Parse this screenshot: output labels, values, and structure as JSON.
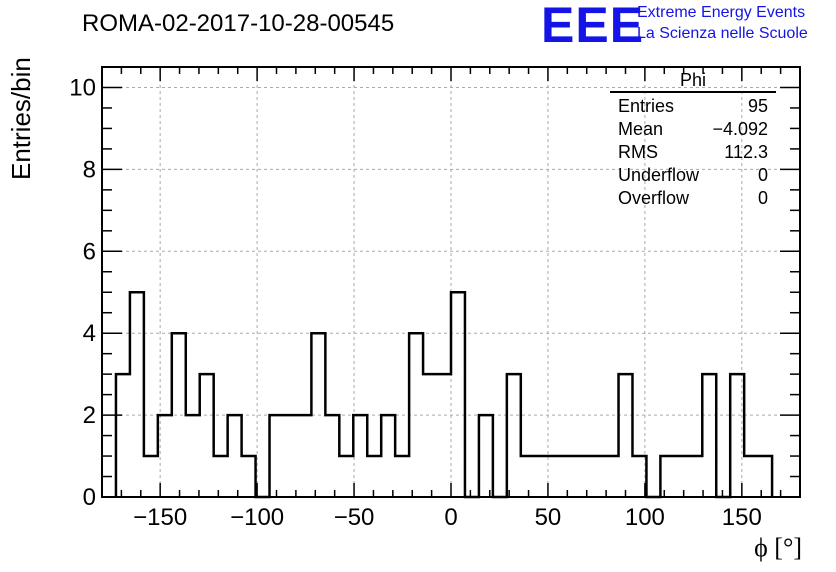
{
  "header": {
    "title": "ROMA-02-2017-10-28-00545",
    "logo_mark": "EEE",
    "logo_line1": "Extreme Energy Events",
    "logo_line2": "La Scienza nelle Scuole"
  },
  "stats": {
    "title": "Phi",
    "rows": [
      {
        "label": "Entries",
        "value": "95"
      },
      {
        "label": "Mean",
        "value": "−4.092"
      },
      {
        "label": "RMS",
        "value": "112.3"
      },
      {
        "label": "Underflow",
        "value": "0"
      },
      {
        "label": "Overflow",
        "value": "0"
      }
    ]
  },
  "chart_data": {
    "type": "bar",
    "histogram": true,
    "xlabel": "ϕ [°]",
    "ylabel": "Entries/bin",
    "xlim": [
      -180,
      180
    ],
    "ylim": [
      0,
      10.5
    ],
    "bin_width": 7.2,
    "bin_start": -172.8,
    "values": [
      3,
      5,
      1,
      2,
      4,
      2,
      3,
      1,
      2,
      1,
      0,
      2,
      2,
      2,
      4,
      2,
      1,
      2,
      1,
      2,
      1,
      4,
      3,
      3,
      5,
      0,
      2,
      0,
      3,
      1,
      1,
      1,
      1,
      1,
      1,
      1,
      3,
      1,
      0,
      1,
      1,
      1,
      3,
      0,
      3,
      1,
      1
    ],
    "x_ticks": [
      -150,
      -100,
      -50,
      0,
      50,
      100,
      150
    ],
    "x_tick_labels": [
      "−150",
      "−100",
      "−50",
      "0",
      "50",
      "100",
      "150"
    ],
    "y_ticks": [
      0,
      2,
      4,
      6,
      8,
      10
    ],
    "y_tick_labels": [
      "0",
      "2",
      "4",
      "6",
      "8",
      "10"
    ],
    "grid": true
  }
}
